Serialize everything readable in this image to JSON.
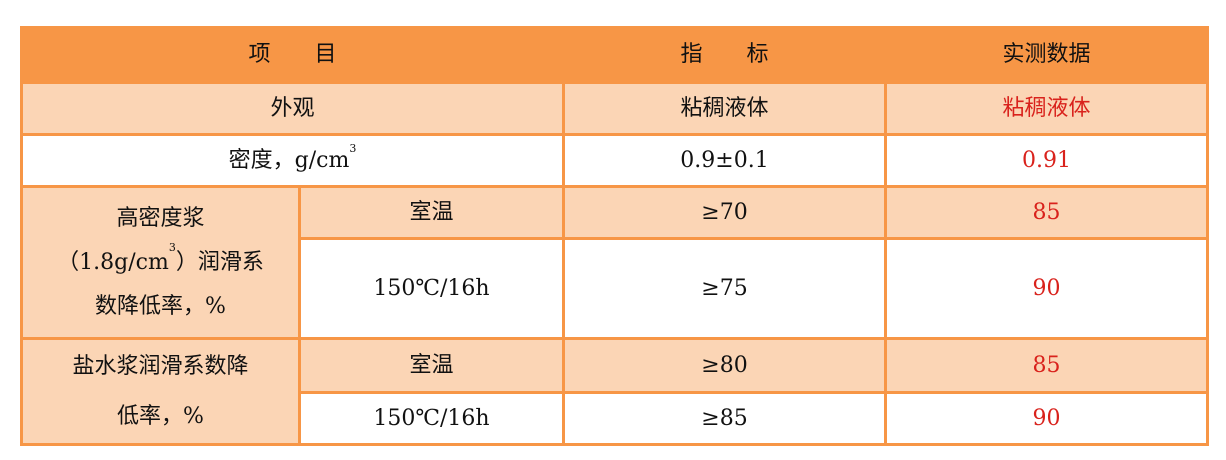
{
  "header": {
    "item": "项　　目",
    "index": "指　　标",
    "measured": "实测数据"
  },
  "rows": {
    "appearance": {
      "label": "外观",
      "index": "粘稠液体",
      "measured": "粘稠液体"
    },
    "density": {
      "label": "密度，g/cm",
      "sup": "3",
      "index": "0.9±0.1",
      "measured": "0.91"
    },
    "high_density": {
      "label_a": "高密度浆",
      "label_b": "（1.8g/cm",
      "sup": "3",
      "label_c": "）润滑系",
      "label_d": "数降低率，%",
      "sub": [
        {
          "condition": "室温",
          "index": "≥70",
          "measured": "85"
        },
        {
          "condition": "150℃/16h",
          "index": "≥75",
          "measured": "90"
        }
      ]
    },
    "brine": {
      "label_a": "盐水浆润滑系数降",
      "label_b": "低率，%",
      "sub": [
        {
          "condition": "室温",
          "index": "≥80",
          "measured": "85"
        },
        {
          "condition": "150℃/16h",
          "index": "≥85",
          "measured": "90"
        }
      ]
    }
  },
  "colors": {
    "header": "#f79646",
    "shade": "#fbd5b5",
    "measured_text": "#d9221c"
  }
}
